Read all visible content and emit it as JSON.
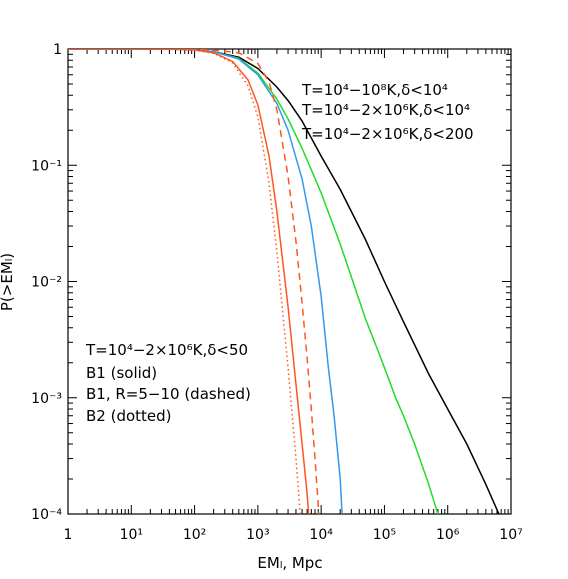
{
  "chart_data": {
    "type": "line",
    "xlabel": "EMₗ, Mpc",
    "ylabel": "P(>EMₗ)",
    "xscale": "log",
    "yscale": "log",
    "xlim": [
      1,
      10000000
    ],
    "ylim": [
      0.0001,
      1
    ],
    "x_tick_labels": [
      "1",
      "10¹",
      "10²",
      "10³",
      "10⁴",
      "10⁵",
      "10⁶",
      "10⁷"
    ],
    "y_tick_labels": [
      "10⁻⁴",
      "10⁻³",
      "10⁻²",
      "10⁻¹",
      "1"
    ],
    "legend_top_right": [
      {
        "text": "T=10⁴−10⁸K,δ<10⁴",
        "color": "#000000"
      },
      {
        "text": "T=10⁴−2×10⁶K,δ<10⁴",
        "color": "#22dd22"
      },
      {
        "text": "T=10⁴−2×10⁶K,δ<200",
        "color": "#3399ee"
      }
    ],
    "legend_bottom_left": [
      {
        "text": "T=10⁴−2×10⁶K,δ<50",
        "color": "#ff5522"
      },
      {
        "text": "B1 (solid)",
        "color": "#ee1111"
      },
      {
        "text": "B1, R=5−10 (dashed)",
        "color": "#ee1111"
      },
      {
        "text": "B2 (dotted)",
        "color": "#ee1111"
      }
    ],
    "series": [
      {
        "color": "#000000",
        "dash": "solid",
        "x": [
          1,
          10,
          50,
          100,
          200,
          500,
          1000,
          2000,
          3000,
          5000,
          10000,
          20000,
          50000,
          100000,
          200000,
          500000,
          1000000,
          2000000,
          4000000,
          7000000,
          9000000
        ],
        "y": [
          1,
          1,
          0.995,
          0.985,
          0.95,
          0.85,
          0.68,
          0.47,
          0.36,
          0.24,
          0.12,
          0.062,
          0.023,
          0.01,
          0.0045,
          0.0016,
          0.0008,
          0.0004,
          0.00018,
          9e-05,
          4e-05
        ]
      },
      {
        "color": "#22dd22",
        "dash": "solid",
        "x": [
          1,
          10,
          50,
          100,
          200,
          500,
          1000,
          2000,
          3000,
          5000,
          10000,
          20000,
          30000,
          50000,
          80000,
          120000,
          150000,
          200000,
          300000,
          500000,
          700000
        ],
        "y": [
          1,
          1,
          0.995,
          0.985,
          0.95,
          0.83,
          0.62,
          0.37,
          0.25,
          0.14,
          0.058,
          0.021,
          0.011,
          0.0048,
          0.0025,
          0.0014,
          0.001,
          0.0007,
          0.0004,
          0.00018,
          0.0001
        ]
      },
      {
        "color": "#3399ee",
        "dash": "solid",
        "x": [
          1,
          10,
          50,
          100,
          200,
          500,
          1000,
          2000,
          3000,
          5000,
          7000,
          10000,
          13000,
          16000,
          20000,
          23000
        ],
        "y": [
          1,
          1,
          0.995,
          0.985,
          0.95,
          0.82,
          0.6,
          0.34,
          0.2,
          0.076,
          0.03,
          0.0075,
          0.0018,
          0.0007,
          0.0002,
          5e-05
        ]
      },
      {
        "color": "#ff5522",
        "dash": "solid",
        "x": [
          1,
          10,
          50,
          100,
          200,
          400,
          700,
          1000,
          1500,
          2000,
          3000,
          4000,
          5000,
          6000,
          7000
        ],
        "y": [
          1,
          1,
          0.995,
          0.98,
          0.93,
          0.78,
          0.54,
          0.33,
          0.12,
          0.04,
          0.006,
          0.0013,
          0.0004,
          0.00015,
          5e-05
        ]
      },
      {
        "color": "#ff5522",
        "dash": "dashed",
        "x": [
          1,
          10,
          50,
          100,
          200,
          500,
          1000,
          1500,
          2000,
          3000,
          4000,
          5000,
          6000,
          7000,
          8000,
          9000,
          10000
        ],
        "y": [
          1,
          1,
          1,
          0.995,
          0.98,
          0.93,
          0.75,
          0.52,
          0.3,
          0.08,
          0.022,
          0.0065,
          0.0022,
          0.0008,
          0.0003,
          0.00012,
          5e-05
        ]
      },
      {
        "color": "#ff5522",
        "dash": "dotted",
        "x": [
          1,
          10,
          50,
          100,
          200,
          400,
          700,
          1000,
          1500,
          2000,
          3000,
          4000,
          5000
        ],
        "y": [
          1,
          1,
          0.99,
          0.975,
          0.92,
          0.76,
          0.48,
          0.26,
          0.07,
          0.018,
          0.0018,
          0.0003,
          6e-05
        ]
      }
    ]
  }
}
